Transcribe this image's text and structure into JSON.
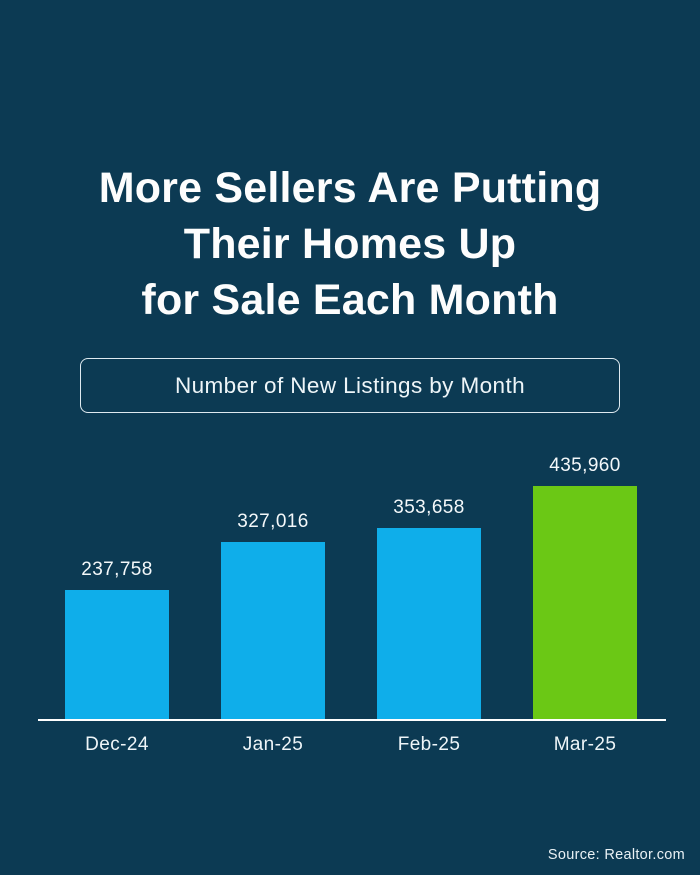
{
  "page": {
    "background_color": "#0c3a53"
  },
  "title": {
    "lines": [
      "More Sellers Are Putting",
      "Their Homes Up",
      "for Sale Each Month"
    ]
  },
  "subtitle": {
    "label": "Number of New Listings by Month"
  },
  "source": {
    "label": "Source: Realtor.com"
  },
  "colors": {
    "background": "#0c3a53",
    "bar_blue": "#0FAEEA",
    "bar_green": "#6BC815",
    "text": "#ffffff",
    "axis_line": "#ffffff",
    "subtitle_border": "#dfeaf0"
  },
  "chart_data": {
    "type": "bar",
    "title": "Number of New Listings by Month",
    "categories": [
      "Dec-24",
      "Jan-25",
      "Feb-25",
      "Mar-25"
    ],
    "values": [
      237758,
      327016,
      353658,
      435960
    ],
    "value_labels": [
      "237,758",
      "327,016",
      "353,658",
      "435,960"
    ],
    "bar_colors": [
      "#0FAEEA",
      "#0FAEEA",
      "#0FAEEA",
      "#6BC815"
    ],
    "xlabel": "",
    "ylabel": "",
    "ylim": [
      0,
      435960
    ],
    "grid": false,
    "legend": "none",
    "annotations": "value labels shown above each bar; highlighted final bar in green"
  }
}
